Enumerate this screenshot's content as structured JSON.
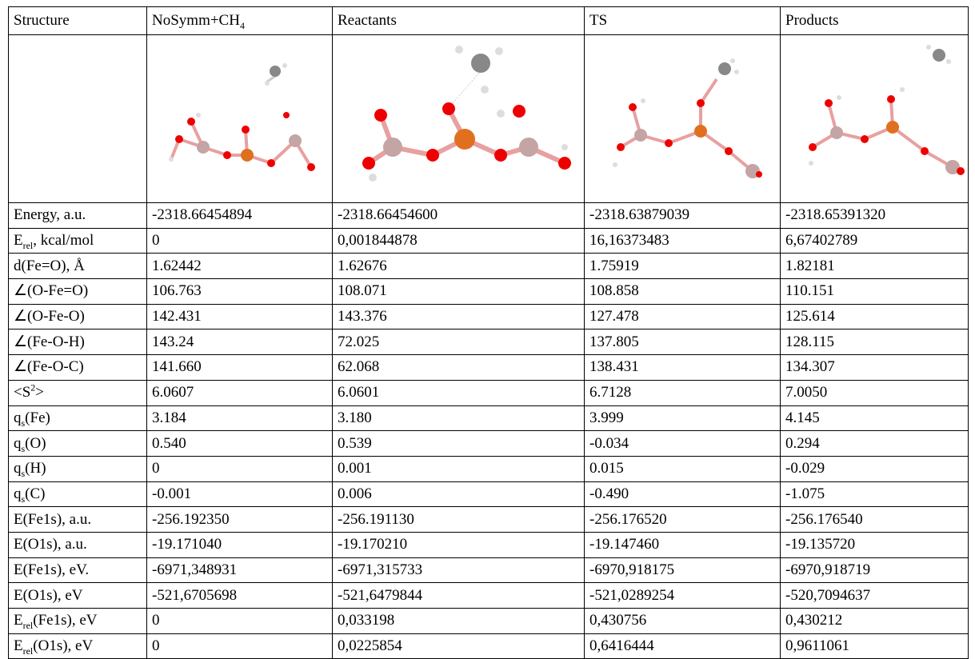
{
  "header": [
    [
      {
        "t": "Structure"
      }
    ],
    [
      {
        "t": "NoSymm+CH"
      },
      {
        "sub": "4"
      }
    ],
    [
      {
        "t": "Reactants"
      }
    ],
    [
      {
        "t": "TS"
      }
    ],
    [
      {
        "t": "Products"
      }
    ]
  ],
  "rows": [
    {
      "label": [
        {
          "t": "Energy, a.u."
        }
      ],
      "values": [
        "-2318.66454894",
        "-2318.66454600",
        "-2318.63879039",
        "-2318.65391320"
      ]
    },
    {
      "label": [
        {
          "t": "E"
        },
        {
          "sub": "rel"
        },
        {
          "t": ", kcal/mol"
        }
      ],
      "values": [
        "0",
        "0,001844878",
        "16,16373483",
        "6,67402789"
      ]
    },
    {
      "label": [
        {
          "t": "d(Fe=O), Å"
        }
      ],
      "values": [
        "1.62442",
        "1.62676",
        "1.75919",
        "1.82181"
      ]
    },
    {
      "label": [
        {
          "t": "∠(O-Fe=O)"
        }
      ],
      "values": [
        "106.763",
        "108.071",
        "108.858",
        "110.151"
      ]
    },
    {
      "label": [
        {
          "t": "∠(O-Fe-O)"
        }
      ],
      "values": [
        "142.431",
        "143.376",
        "127.478",
        "125.614"
      ]
    },
    {
      "label": [
        {
          "t": "∠(Fe-O-H)"
        }
      ],
      "values": [
        "143.24",
        "72.025",
        "137.805",
        "128.115"
      ]
    },
    {
      "label": [
        {
          "t": "∠(Fe-O-C)"
        }
      ],
      "values": [
        "141.660",
        "62.068",
        "138.431",
        "134.307"
      ]
    },
    {
      "label": [
        {
          "t": "<S"
        },
        {
          "sup": "2"
        },
        {
          "t": ">"
        }
      ],
      "values": [
        "6.0607",
        "6.0601",
        "6.7128",
        "7.0050"
      ]
    },
    {
      "label": [
        {
          "t": "q"
        },
        {
          "sub": "s"
        },
        {
          "t": "(Fe)"
        }
      ],
      "values": [
        "3.184",
        "3.180",
        "3.999",
        "4.145"
      ]
    },
    {
      "label": [
        {
          "t": "q"
        },
        {
          "sub": "s"
        },
        {
          "t": "(O)"
        }
      ],
      "values": [
        "0.540",
        "0.539",
        "-0.034",
        "0.294"
      ]
    },
    {
      "label": [
        {
          "t": "q"
        },
        {
          "sub": "s"
        },
        {
          "t": "(H)"
        }
      ],
      "values": [
        "0",
        "0.001",
        "0.015",
        "-0.029"
      ]
    },
    {
      "label": [
        {
          "t": "q"
        },
        {
          "sub": "s"
        },
        {
          "t": "(C)"
        }
      ],
      "values": [
        "-0.001",
        "0.006",
        "-0.490",
        "-1.075"
      ]
    },
    {
      "label": [
        {
          "t": "E(Fe1s), a.u."
        }
      ],
      "values": [
        "-256.192350",
        "-256.191130",
        "-256.176520",
        "-256.176540"
      ]
    },
    {
      "label": [
        {
          "t": "E(O1s), a.u."
        }
      ],
      "values": [
        "-19.171040",
        "-19.170210",
        "-19.147460",
        "-19.135720"
      ]
    },
    {
      "label": [
        {
          "t": "E(Fe1s), eV."
        }
      ],
      "values": [
        "-6971,348931",
        "-6971,315733",
        "-6970,918175",
        "-6970,918719"
      ]
    },
    {
      "label": [
        {
          "t": "E(O1s), eV"
        }
      ],
      "values": [
        "-521,6705698",
        "-521,6479844",
        "-521,0289254",
        "-520,7094637"
      ]
    },
    {
      "label": [
        {
          "t": "E"
        },
        {
          "sub": "rel"
        },
        {
          "t": "(Fe1s), eV"
        }
      ],
      "values": [
        "0",
        "0,033198",
        "0,430756",
        "0,430212"
      ]
    },
    {
      "label": [
        {
          "t": "E"
        },
        {
          "sub": "rel"
        },
        {
          "t": "(O1s), eV"
        }
      ],
      "values": [
        "0",
        "0,0225854",
        "0,6416444",
        "0,9611061"
      ]
    }
  ]
}
